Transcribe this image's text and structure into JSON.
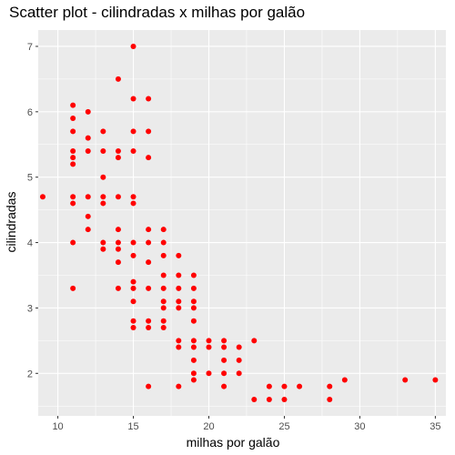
{
  "chart_data": {
    "type": "scatter",
    "title": "Scatter plot - cilindradas x milhas por galão",
    "xlabel": "milhas por galão",
    "ylabel": "cilindradas",
    "xlim": [
      8.7,
      35.7
    ],
    "ylim": [
      1.35,
      7.25
    ],
    "x_ticks": [
      10,
      15,
      20,
      25,
      30,
      35
    ],
    "y_ticks": [
      2,
      3,
      4,
      5,
      6,
      7
    ],
    "grid": true,
    "panel_color": "#ebebeb",
    "grid_color": "#ffffff",
    "point_color": "#ff0000",
    "points": [
      [
        9,
        4.7
      ],
      [
        11,
        6.1
      ],
      [
        11,
        5.9
      ],
      [
        11,
        5.7
      ],
      [
        11,
        5.4
      ],
      [
        11,
        5.3
      ],
      [
        11,
        5.2
      ],
      [
        11,
        4.7
      ],
      [
        11,
        4.6
      ],
      [
        11,
        4.0
      ],
      [
        11,
        3.3
      ],
      [
        12,
        6.0
      ],
      [
        12,
        5.6
      ],
      [
        12,
        5.4
      ],
      [
        12,
        4.7
      ],
      [
        12,
        4.4
      ],
      [
        12,
        4.2
      ],
      [
        13,
        5.7
      ],
      [
        13,
        5.4
      ],
      [
        13,
        5.0
      ],
      [
        13,
        4.7
      ],
      [
        13,
        4.6
      ],
      [
        13,
        4.0
      ],
      [
        13,
        3.9
      ],
      [
        14,
        6.5
      ],
      [
        14,
        5.4
      ],
      [
        14,
        5.3
      ],
      [
        14,
        4.7
      ],
      [
        14,
        4.2
      ],
      [
        14,
        4.0
      ],
      [
        14,
        3.9
      ],
      [
        14,
        3.7
      ],
      [
        14,
        3.3
      ],
      [
        15,
        7.0
      ],
      [
        15,
        6.2
      ],
      [
        15,
        5.7
      ],
      [
        15,
        5.4
      ],
      [
        15,
        4.7
      ],
      [
        15,
        4.6
      ],
      [
        15,
        4.0
      ],
      [
        15,
        3.8
      ],
      [
        15,
        3.4
      ],
      [
        15,
        3.3
      ],
      [
        15,
        3.1
      ],
      [
        15,
        2.8
      ],
      [
        15,
        2.7
      ],
      [
        16,
        6.2
      ],
      [
        16,
        5.7
      ],
      [
        16,
        5.3
      ],
      [
        16,
        4.2
      ],
      [
        16,
        4.0
      ],
      [
        16,
        3.7
      ],
      [
        16,
        3.3
      ],
      [
        16,
        2.8
      ],
      [
        16,
        2.7
      ],
      [
        16,
        1.8
      ],
      [
        17,
        4.2
      ],
      [
        17,
        4.0
      ],
      [
        17,
        3.8
      ],
      [
        17,
        3.5
      ],
      [
        17,
        3.3
      ],
      [
        17,
        3.1
      ],
      [
        17,
        3.0
      ],
      [
        17,
        2.8
      ],
      [
        17,
        2.7
      ],
      [
        18,
        3.8
      ],
      [
        18,
        3.5
      ],
      [
        18,
        3.3
      ],
      [
        18,
        3.1
      ],
      [
        18,
        3.0
      ],
      [
        18,
        2.5
      ],
      [
        18,
        2.4
      ],
      [
        18,
        1.8
      ],
      [
        19,
        3.5
      ],
      [
        19,
        3.3
      ],
      [
        19,
        3.1
      ],
      [
        19,
        3.0
      ],
      [
        19,
        2.8
      ],
      [
        19,
        2.5
      ],
      [
        19,
        2.4
      ],
      [
        19,
        2.2
      ],
      [
        19,
        2.0
      ],
      [
        19,
        1.9
      ],
      [
        20,
        2.5
      ],
      [
        20,
        2.4
      ],
      [
        20,
        2.0
      ],
      [
        21,
        2.5
      ],
      [
        21,
        2.4
      ],
      [
        21,
        2.2
      ],
      [
        21,
        2.0
      ],
      [
        21,
        1.8
      ],
      [
        22,
        2.4
      ],
      [
        22,
        2.2
      ],
      [
        22,
        2.0
      ],
      [
        23,
        2.5
      ],
      [
        23,
        1.6
      ],
      [
        24,
        1.8
      ],
      [
        24,
        1.6
      ],
      [
        25,
        1.8
      ],
      [
        25,
        1.6
      ],
      [
        26,
        1.8
      ],
      [
        28,
        1.8
      ],
      [
        28,
        1.6
      ],
      [
        29,
        1.9
      ],
      [
        33,
        1.9
      ],
      [
        35,
        1.9
      ]
    ]
  }
}
